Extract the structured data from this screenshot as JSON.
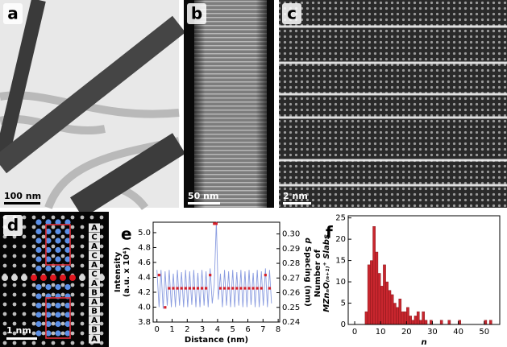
{
  "panels": [
    {
      "label": "a",
      "scale_bar": "100 nm"
    },
    {
      "label": "b",
      "scale_bar": "50 nm"
    },
    {
      "label": "c",
      "scale_bar": "2 nm"
    },
    {
      "label": "d",
      "scale_bar": "1 nm",
      "stacking": [
        "A",
        "C",
        "A",
        "C",
        "A",
        "C",
        "A",
        "B",
        "A",
        "B",
        "A",
        "B",
        "A"
      ]
    }
  ],
  "chart_data": [
    {
      "type": "line",
      "label": "e",
      "xlabel": "Distance (nm)",
      "ylabel": [
        "Intensity",
        "(a.u. x 10⁴)"
      ],
      "y2label": [
        "d",
        " Spacing (nm)"
      ],
      "xlim": [
        -0.25,
        8.1
      ],
      "xticks": [
        0,
        1,
        2,
        3,
        4,
        5,
        6,
        7,
        8
      ],
      "ylim": [
        3.8,
        5.14
      ],
      "yticks": [
        3.8,
        {
          "value": 4,
          "label": "4.0"
        },
        4.2,
        4.4,
        4.6,
        4.8,
        {
          "value": 5,
          "label": "5.0"
        }
      ],
      "y2lim": [
        0.24,
        0.308
      ],
      "y2ticks": [
        0.24,
        0.25,
        0.26,
        0.27,
        0.28,
        0.29,
        {
          "value": 0.3,
          "label": "0.30"
        }
      ],
      "series": [
        {
          "color": "#8a9ce0",
          "x": [
            0,
            0.14,
            0.27,
            0.41,
            0.54,
            0.68,
            0.81,
            0.95,
            1.08,
            1.22,
            1.35,
            1.49,
            1.62,
            1.76,
            1.89,
            2.03,
            2.16,
            2.3,
            2.43,
            2.57,
            2.7,
            2.84,
            2.97,
            3.11,
            3.24,
            3.38,
            3.51,
            3.65,
            3.78,
            3.92,
            4.05,
            4.19,
            4.32,
            4.46,
            4.59,
            4.73,
            4.86,
            5,
            5.13,
            5.27,
            5.4,
            5.54,
            5.67,
            5.81,
            5.94,
            6.08,
            6.21,
            6.35,
            6.48,
            6.62,
            6.75,
            6.89,
            7.02,
            7.16,
            7.29,
            7.43,
            7.56
          ],
          "values": [
            4.5,
            4.0,
            4.5,
            3.98,
            4.48,
            4.02,
            4.5,
            4.0,
            4.45,
            4.0,
            4.5,
            4.02,
            4.47,
            4.0,
            4.5,
            4.0,
            4.48,
            4.03,
            4.5,
            4.0,
            4.46,
            4.0,
            4.5,
            4.02,
            4.48,
            4.0,
            4.52,
            4.05,
            4.3,
            5.15,
            4.1,
            4.45,
            4.0,
            4.5,
            4.02,
            4.48,
            4.0,
            4.5,
            4.0,
            4.47,
            4.02,
            4.5,
            4.0,
            4.48,
            4.0,
            4.5,
            4.03,
            4.46,
            4.0,
            4.5,
            4.0,
            4.48,
            4.02,
            4.52,
            4.0,
            4.5,
            4.05
          ]
        },
        {
          "color": "#d6202a",
          "axis": "y2",
          "x": [
            0.14,
            0.54,
            0.81,
            1.08,
            1.35,
            1.62,
            1.89,
            2.16,
            2.43,
            2.7,
            2.97,
            3.24,
            3.51,
            3.78,
            3.92,
            4.19,
            4.46,
            4.73,
            5,
            5.27,
            5.54,
            5.81,
            6.08,
            6.35,
            6.62,
            6.89,
            7.16,
            7.43
          ],
          "values": [
            0.272,
            0.25,
            0.263,
            0.263,
            0.263,
            0.263,
            0.263,
            0.263,
            0.263,
            0.263,
            0.263,
            0.263,
            0.272,
            0.307,
            0.307,
            0.263,
            0.263,
            0.263,
            0.263,
            0.263,
            0.263,
            0.263,
            0.263,
            0.263,
            0.263,
            0.263,
            0.272,
            0.263
          ]
        }
      ]
    },
    {
      "type": "histogram",
      "label": "f",
      "xlabel": "n",
      "ylabel": [
        "Number of",
        "MZnₙO₍ₙ₊₁₎⁺ Slabs"
      ],
      "xlim": [
        -2.5,
        56
      ],
      "xticks": [
        0,
        10,
        20,
        30,
        40,
        50
      ],
      "ylim": [
        0,
        25.5
      ],
      "yticks": [
        0,
        5,
        10,
        15,
        20,
        25
      ],
      "color": "#c8262e",
      "bins": [
        3,
        4,
        5,
        6,
        7,
        8,
        9,
        10,
        11,
        12,
        13,
        14,
        15,
        16,
        17,
        18,
        19,
        20,
        21,
        22,
        23,
        24,
        25,
        26,
        27,
        28,
        29,
        30,
        31,
        32,
        33,
        34,
        35,
        36,
        37,
        38,
        39,
        40,
        41,
        42,
        43,
        44,
        45,
        46,
        47,
        48,
        49,
        50,
        51,
        52,
        53
      ],
      "counts": [
        0,
        3,
        14,
        15,
        23,
        17,
        12,
        9,
        14,
        10,
        8,
        7,
        5,
        4,
        6,
        3,
        3,
        4,
        2,
        1,
        2,
        3,
        1,
        3,
        1,
        0,
        1,
        0,
        0,
        0,
        1,
        0,
        0,
        1,
        0,
        0,
        0,
        1,
        0,
        0,
        0,
        0,
        0,
        0,
        0,
        0,
        0,
        1,
        0,
        1
      ]
    }
  ]
}
